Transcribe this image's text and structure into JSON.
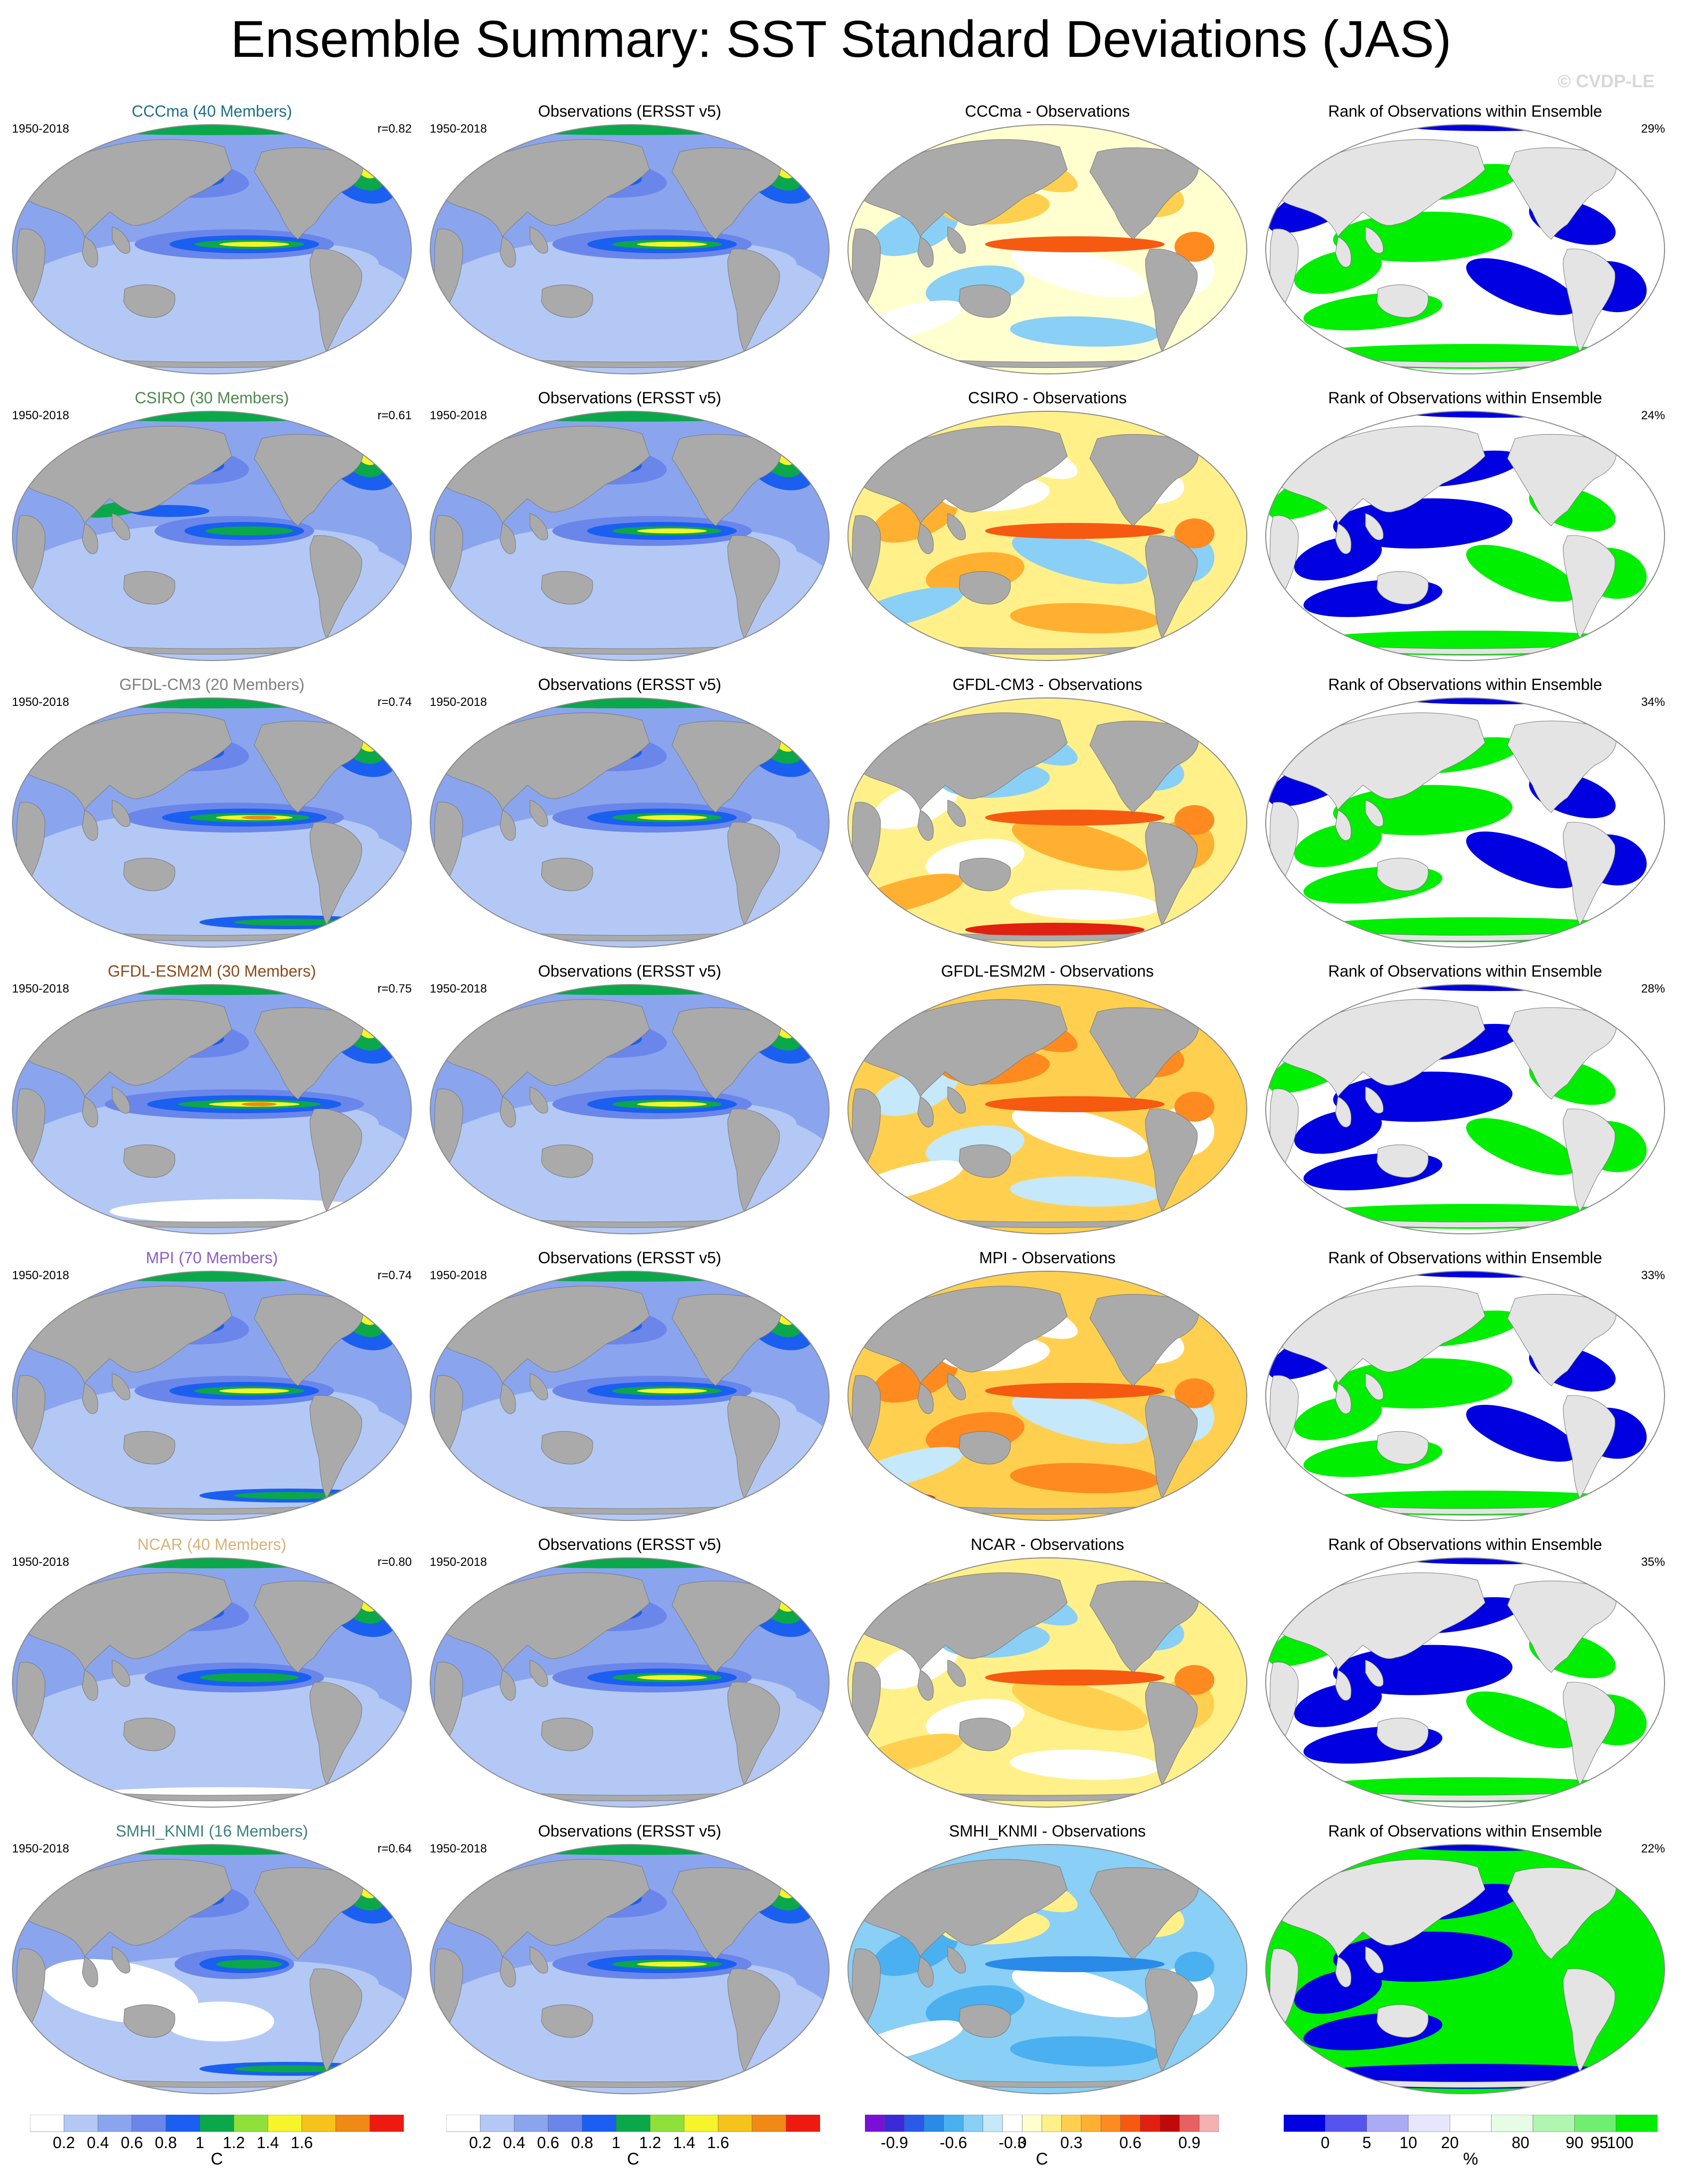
{
  "title": "Ensemble Summary: SST Standard Deviations (JAS)",
  "watermark": "© CVDP-LE",
  "rows": [
    {
      "model": "CCCma (40 Members)",
      "model_color": "#1f6f8b",
      "period": "1950-2018",
      "r": "r=0.82",
      "obs": "Observations (ERSST v5)",
      "diff": "CCCma - Observations",
      "rank": "Rank of Observations within Ensemble",
      "pct": "29%",
      "pat": 0
    },
    {
      "model": "CSIRO (30 Members)",
      "model_color": "#4f8a4f",
      "period": "1950-2018",
      "r": "r=0.61",
      "obs": "Observations (ERSST v5)",
      "diff": "CSIRO - Observations",
      "rank": "Rank of Observations within Ensemble",
      "pct": "24%",
      "pat": 1
    },
    {
      "model": "GFDL-CM3 (20 Members)",
      "model_color": "#808080",
      "period": "1950-2018",
      "r": "r=0.74",
      "obs": "Observations (ERSST v5)",
      "diff": "GFDL-CM3 - Observations",
      "rank": "Rank of Observations within Ensemble",
      "pct": "34%",
      "pat": 2
    },
    {
      "model": "GFDL-ESM2M (30 Members)",
      "model_color": "#8b4a1c",
      "period": "1950-2018",
      "r": "r=0.75",
      "obs": "Observations (ERSST v5)",
      "diff": "GFDL-ESM2M - Observations",
      "rank": "Rank of Observations within Ensemble",
      "pct": "28%",
      "pat": 3
    },
    {
      "model": "MPI (70 Members)",
      "model_color": "#8a5fc8",
      "period": "1950-2018",
      "r": "r=0.74",
      "obs": "Observations (ERSST v5)",
      "diff": "MPI - Observations",
      "rank": "Rank of Observations within Ensemble",
      "pct": "33%",
      "pat": 4
    },
    {
      "model": "NCAR (40 Members)",
      "model_color": "#d7b27a",
      "period": "1950-2018",
      "r": "r=0.80",
      "obs": "Observations (ERSST v5)",
      "diff": "NCAR - Observations",
      "rank": "Rank of Observations within Ensemble",
      "pct": "35%",
      "pat": 5
    },
    {
      "model": "SMHI_KNMI (16 Members)",
      "model_color": "#3f8080",
      "period": "1950-2018",
      "r": "r=0.64",
      "obs": "Observations (ERSST v5)",
      "diff": "SMHI_KNMI - Observations",
      "rank": "Rank of Observations within Ensemble",
      "pct": "22%",
      "pat": 6
    }
  ],
  "colors": {
    "land": "#aaaaaa",
    "sd_scale": [
      "#ffffff",
      "#b4c8f5",
      "#8aa5ee",
      "#6a86ea",
      "#1a5ff0",
      "#0aa84a",
      "#8fe03a",
      "#f5f52a",
      "#f5c31a",
      "#f08a14",
      "#ee1a10"
    ],
    "diff_scale": [
      "#7a10d8",
      "#3a2ad8",
      "#2a5ae8",
      "#2a8ae8",
      "#4ab0f0",
      "#8acff5",
      "#c5e8fa",
      "#ffffff",
      "#ffffd0",
      "#fff08a",
      "#ffd050",
      "#ffb030",
      "#ff8a20",
      "#f55a10",
      "#e02010",
      "#c00a0a",
      "#e86060",
      "#f5b0b0"
    ],
    "rank_scale": [
      "#0000e0",
      "#5555ee",
      "#aaaaf5",
      "#e6e6fc",
      "#ffffff",
      "#e6fce6",
      "#b0f5b0",
      "#70ee70",
      "#00ee00"
    ]
  },
  "colorbars": {
    "sd": {
      "labels": [
        "0.2",
        "0.4",
        "0.6",
        "0.8",
        "1",
        "1.2",
        "1.4",
        "1.6"
      ],
      "unit": "C"
    },
    "diff": {
      "labels": [
        "-0.9",
        "-0.6",
        "-0.3",
        "0",
        "0.3",
        "0.6",
        "0.9"
      ],
      "unit": "C"
    },
    "rank": {
      "labels": [
        "0",
        "5",
        "10",
        "20",
        "80",
        "90",
        "95",
        "100"
      ],
      "unit": "%"
    }
  }
}
